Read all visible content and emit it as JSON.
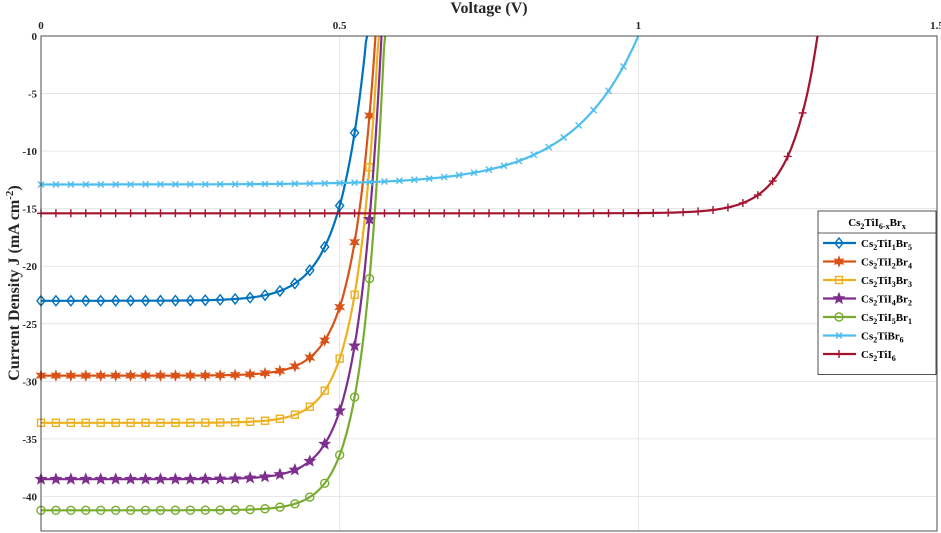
{
  "chart_data": {
    "type": "line",
    "xlabel": "Voltage (V)",
    "ylabel": "Current Density J (mA cm-2)",
    "xlim": [
      0,
      1.5
    ],
    "ylim": [
      -43,
      0
    ],
    "x_ticks": [
      0,
      0.5,
      1,
      1.5
    ],
    "x_tick_labels": [
      "0",
      "0.5",
      "1",
      "1.5"
    ],
    "y_ticks": [
      0,
      -5,
      -10,
      -15,
      -20,
      -25,
      -30,
      -35,
      -40
    ],
    "y_tick_labels": [
      "0",
      "-5",
      "-10",
      "-15",
      "-20",
      "-25",
      "-30",
      "-35",
      "-40"
    ],
    "x_axis_position": "top",
    "y_direction": "reverse",
    "grid": true,
    "legend_position": "right",
    "legend_title": "Cs2TiI6-xBrx",
    "series": [
      {
        "name": "Cs2TiI1Br5",
        "color": "#0072BD",
        "marker": "diamond",
        "jsc": -23.0,
        "voc": 0.545,
        "n": 1.7
      },
      {
        "name": "Cs2TiI2Br4",
        "color": "#D95319",
        "marker": "hexstar",
        "jsc": -29.5,
        "voc": 0.56,
        "n": 1.45
      },
      {
        "name": "Cs2TiI3Br3",
        "color": "#EDB120",
        "marker": "square",
        "jsc": -33.6,
        "voc": 0.565,
        "n": 1.4
      },
      {
        "name": "Cs2TiI4Br2",
        "color": "#7E2F8E",
        "marker": "pentagram",
        "jsc": -38.5,
        "voc": 0.57,
        "n": 1.45
      },
      {
        "name": "Cs2TiI5Br1",
        "color": "#77AC30",
        "marker": "circle",
        "jsc": -41.2,
        "voc": 0.575,
        "n": 1.35
      },
      {
        "name": "Cs2TiBr6",
        "color": "#4DBEEE",
        "marker": "x",
        "jsc": -12.9,
        "voc": 1.0,
        "n": 4.2
      },
      {
        "name": "Cs2TiI6",
        "color": "#A2142F",
        "marker": "plus",
        "jsc": -15.4,
        "voc": 1.3,
        "n": 1.7
      }
    ]
  }
}
